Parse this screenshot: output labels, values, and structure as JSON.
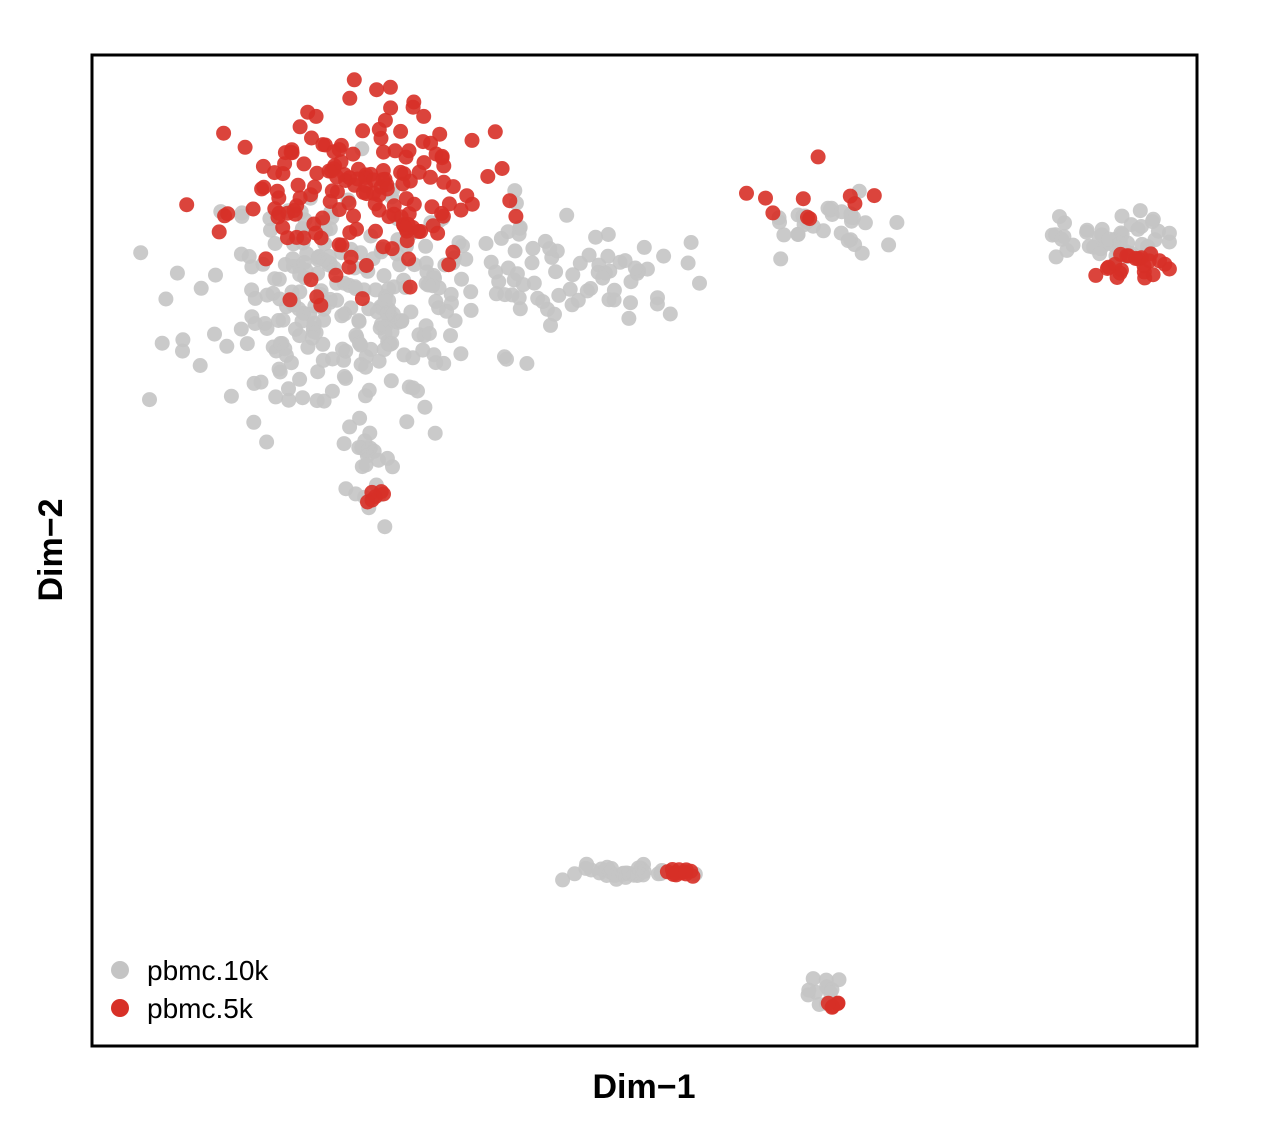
{
  "chart_data": {
    "type": "scatter",
    "title": "",
    "xlabel": "Dim−1",
    "ylabel": "Dim−2",
    "xlim": [
      0,
      100
    ],
    "ylim": [
      0,
      100
    ],
    "grid": false,
    "legend_position": "bottom-left",
    "colors": {
      "pbmc.10k": "#c4c4c4",
      "pbmc.5k": "#d73027"
    },
    "clusters": [
      {
        "name": "left-blob-gray",
        "series": "pbmc.10k",
        "cx": 23,
        "cy": 75,
        "sx": 11,
        "sy": 9.5,
        "n": 260,
        "seed": 11
      },
      {
        "name": "left-blob-red",
        "series": "pbmc.5k",
        "cx": 24,
        "cy": 86,
        "sx": 9.5,
        "sy": 7,
        "n": 170,
        "seed": 23
      },
      {
        "name": "left-tail-gray",
        "series": "pbmc.10k",
        "cx": 44,
        "cy": 78,
        "sx": 8,
        "sy": 4,
        "n": 70,
        "seed": 37
      },
      {
        "name": "left-stem-gray",
        "series": "pbmc.10k",
        "cx": 25,
        "cy": 58,
        "sx": 2.2,
        "sy": 4,
        "n": 22,
        "seed": 41
      },
      {
        "name": "left-stem-red",
        "series": "pbmc.5k",
        "cx": 25,
        "cy": 55.5,
        "sx": 1.5,
        "sy": 1.2,
        "n": 6,
        "seed": 43
      },
      {
        "name": "mid-band-gray",
        "series": "pbmc.10k",
        "cx": 67,
        "cy": 83,
        "sx": 6,
        "sy": 2.5,
        "n": 32,
        "seed": 53
      },
      {
        "name": "mid-band-red",
        "series": "pbmc.5k",
        "cx": 65,
        "cy": 84,
        "sx": 6,
        "sy": 2.5,
        "n": 10,
        "seed": 59
      },
      {
        "name": "right-blob-gray",
        "series": "pbmc.10k",
        "cx": 92,
        "cy": 81.5,
        "sx": 5.5,
        "sy": 2.5,
        "n": 52,
        "seed": 61
      },
      {
        "name": "right-blob-red",
        "series": "pbmc.5k",
        "cx": 95,
        "cy": 78.5,
        "sx": 4,
        "sy": 1.2,
        "n": 22,
        "seed": 67
      },
      {
        "name": "lower-band-gray",
        "series": "pbmc.10k",
        "cx": 49,
        "cy": 17.5,
        "sx": 5,
        "sy": 0.6,
        "n": 34,
        "seed": 71
      },
      {
        "name": "lower-band-red",
        "series": "pbmc.5k",
        "cx": 53,
        "cy": 17.8,
        "sx": 1.5,
        "sy": 0.6,
        "n": 12,
        "seed": 73
      },
      {
        "name": "bottom-tail-gray",
        "series": "pbmc.10k",
        "cx": 66,
        "cy": 5.5,
        "sx": 1.3,
        "sy": 1.6,
        "n": 12,
        "seed": 79
      },
      {
        "name": "bottom-tail-red",
        "series": "pbmc.5k",
        "cx": 67.2,
        "cy": 4.3,
        "sx": 0.8,
        "sy": 0.6,
        "n": 5,
        "seed": 83
      }
    ],
    "series": [
      {
        "name": "pbmc.10k",
        "color": "#c4c4c4"
      },
      {
        "name": "pbmc.5k",
        "color": "#d73027"
      }
    ]
  }
}
